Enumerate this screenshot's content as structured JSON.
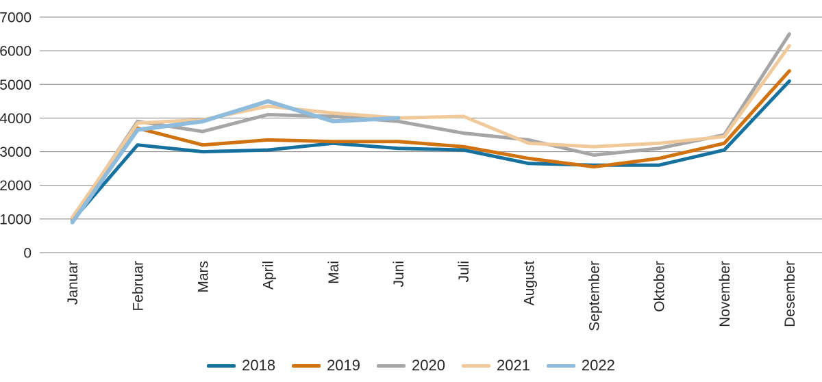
{
  "chart_data": {
    "type": "line",
    "title": "",
    "xlabel": "",
    "ylabel": "",
    "categories": [
      "Januar",
      "Februar",
      "Mars",
      "April",
      "Mai",
      "Juni",
      "Juli",
      "August",
      "September",
      "Oktober",
      "November",
      "Desember"
    ],
    "series": [
      {
        "name": "2018",
        "color": "#17719f",
        "values": [
          950,
          3200,
          3000,
          3050,
          3250,
          3100,
          3050,
          2650,
          2600,
          2600,
          3050,
          5100
        ]
      },
      {
        "name": "2019",
        "color": "#d0720f",
        "values": [
          1000,
          3700,
          3200,
          3350,
          3300,
          3300,
          3150,
          2800,
          2550,
          2800,
          3250,
          5400
        ]
      },
      {
        "name": "2020",
        "color": "#a6a6a6",
        "values": [
          1000,
          3900,
          3600,
          4100,
          4050,
          3900,
          3550,
          3350,
          2900,
          3100,
          3500,
          6500
        ]
      },
      {
        "name": "2021",
        "color": "#f1ca9b",
        "values": [
          1050,
          3850,
          3950,
          4350,
          4150,
          4000,
          4050,
          3250,
          3150,
          3250,
          3450,
          6150
        ]
      },
      {
        "name": "2022",
        "color": "#8fbcdd",
        "values": [
          900,
          3650,
          3900,
          4500,
          3900,
          4000,
          null,
          null,
          null,
          null,
          null,
          null
        ]
      }
    ],
    "ylim": [
      0,
      7000
    ],
    "yticks": [
      0,
      1000,
      2000,
      3000,
      4000,
      5000,
      6000,
      7000
    ],
    "grid": true,
    "legend_position": "bottom",
    "colors": {
      "grid": "#7f7f7f",
      "text": "#262626"
    }
  }
}
